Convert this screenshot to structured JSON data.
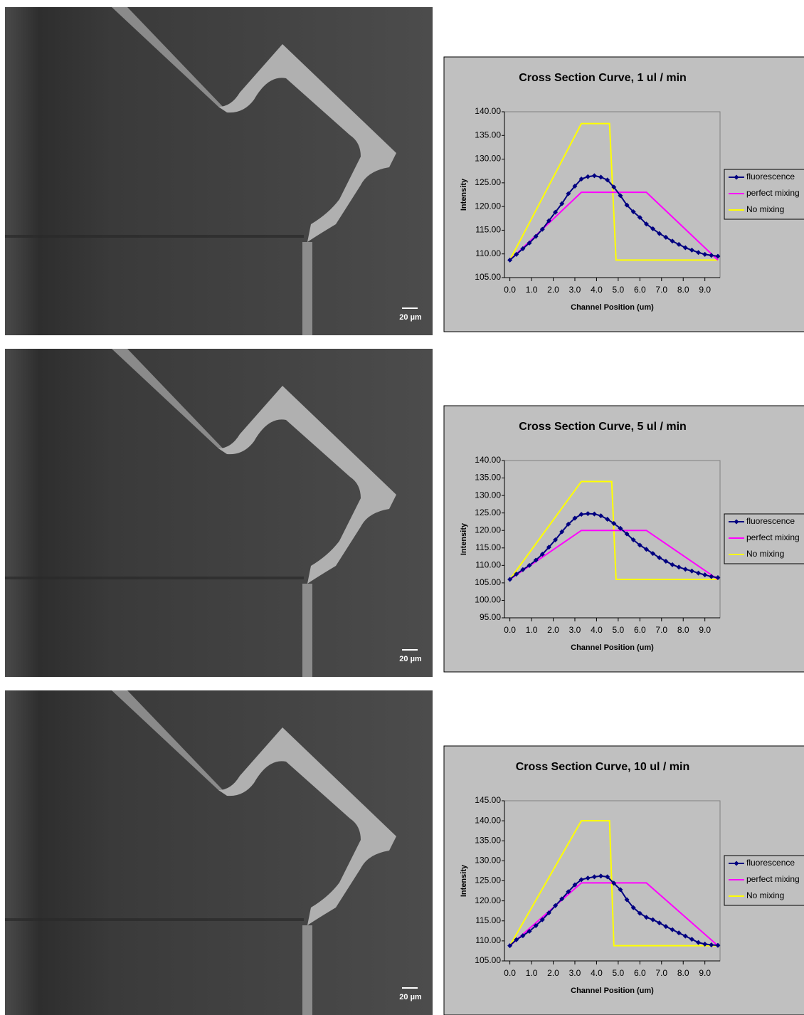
{
  "images": [
    {
      "scale_bar": "20 µm"
    },
    {
      "scale_bar": "20 µm"
    },
    {
      "scale_bar": "20 µm"
    }
  ],
  "chart_data": [
    {
      "type": "line",
      "title": "Cross Section Curve, 1 ul / min",
      "x_label": "Channel Position (um)",
      "y_label": "Intensity",
      "xlim": [
        -0.25,
        9.7
      ],
      "ylim": [
        105,
        140
      ],
      "legend": "right",
      "xticks": [
        {
          "value": 0,
          "label": "0.0"
        },
        {
          "value": 1,
          "label": "1.0"
        },
        {
          "value": 2,
          "label": "2.0"
        },
        {
          "value": 3,
          "label": "3.0"
        },
        {
          "value": 4,
          "label": "4.0"
        },
        {
          "value": 5,
          "label": "5.0"
        },
        {
          "value": 6,
          "label": "6.0"
        },
        {
          "value": 7,
          "label": "7.0"
        },
        {
          "value": 8,
          "label": "8.0"
        },
        {
          "value": 9,
          "label": "9.0"
        }
      ],
      "yticks": [
        {
          "value": 105,
          "label": "105.00"
        },
        {
          "value": 110,
          "label": "110.00"
        },
        {
          "value": 115,
          "label": "115.00"
        },
        {
          "value": 120,
          "label": "120.00"
        },
        {
          "value": 125,
          "label": "125.00"
        },
        {
          "value": 130,
          "label": "130.00"
        },
        {
          "value": 135,
          "label": "135.00"
        },
        {
          "value": 140,
          "label": "140.00"
        }
      ],
      "series": [
        {
          "name": "fluorescence",
          "color": "#000080",
          "marker": "diamond",
          "x": [
            0,
            0.3,
            0.6,
            0.9,
            1.2,
            1.5,
            1.8,
            2.1,
            2.4,
            2.7,
            3.0,
            3.3,
            3.6,
            3.9,
            4.2,
            4.5,
            4.8,
            5.1,
            5.4,
            5.7,
            6.0,
            6.3,
            6.6,
            6.9,
            7.2,
            7.5,
            7.8,
            8.1,
            8.4,
            8.7,
            9.0,
            9.3,
            9.6
          ],
          "values": [
            108.7,
            109.9,
            111.1,
            112.3,
            113.7,
            115.2,
            117.0,
            118.8,
            120.6,
            122.7,
            124.3,
            125.8,
            126.3,
            126.5,
            126.2,
            125.6,
            124.1,
            122.3,
            120.3,
            118.9,
            117.7,
            116.3,
            115.3,
            114.3,
            113.5,
            112.7,
            112.0,
            111.3,
            110.8,
            110.3,
            109.9,
            109.7,
            109.5
          ]
        },
        {
          "name": "perfect mixing",
          "color": "#ff00ff",
          "x": [
            0,
            3.3,
            6.3,
            9.6
          ],
          "values": [
            108.7,
            123,
            123,
            108.7
          ]
        },
        {
          "name": "No mixing",
          "color": "#ffff00",
          "x": [
            0,
            3.3,
            4.6,
            4.9,
            9.6
          ],
          "values": [
            108.7,
            137.5,
            137.5,
            108.7,
            108.7
          ]
        }
      ]
    },
    {
      "type": "line",
      "title": "Cross Section Curve, 5 ul / min",
      "x_label": "Channel Position (um)",
      "y_label": "Intensity",
      "xlim": [
        -0.25,
        9.7
      ],
      "ylim": [
        95,
        140
      ],
      "legend": "right",
      "xticks": [
        {
          "value": 0,
          "label": "0.0"
        },
        {
          "value": 1,
          "label": "1.0"
        },
        {
          "value": 2,
          "label": "2.0"
        },
        {
          "value": 3,
          "label": "3.0"
        },
        {
          "value": 4,
          "label": "4.0"
        },
        {
          "value": 5,
          "label": "5.0"
        },
        {
          "value": 6,
          "label": "6.0"
        },
        {
          "value": 7,
          "label": "7.0"
        },
        {
          "value": 8,
          "label": "8.0"
        },
        {
          "value": 9,
          "label": "9.0"
        }
      ],
      "yticks": [
        {
          "value": 95,
          "label": "95.00"
        },
        {
          "value": 100,
          "label": "100.00"
        },
        {
          "value": 105,
          "label": "105.00"
        },
        {
          "value": 110,
          "label": "110.00"
        },
        {
          "value": 115,
          "label": "115.00"
        },
        {
          "value": 120,
          "label": "120.00"
        },
        {
          "value": 125,
          "label": "125.00"
        },
        {
          "value": 130,
          "label": "130.00"
        },
        {
          "value": 135,
          "label": "135.00"
        },
        {
          "value": 140,
          "label": "140.00"
        }
      ],
      "series": [
        {
          "name": "fluorescence",
          "color": "#000080",
          "marker": "diamond",
          "x": [
            0,
            0.3,
            0.6,
            0.9,
            1.2,
            1.5,
            1.8,
            2.1,
            2.4,
            2.7,
            3.0,
            3.3,
            3.6,
            3.9,
            4.2,
            4.5,
            4.8,
            5.1,
            5.4,
            5.7,
            6.0,
            6.3,
            6.6,
            6.9,
            7.2,
            7.5,
            7.8,
            8.1,
            8.4,
            8.7,
            9.0,
            9.3,
            9.6
          ],
          "values": [
            106.0,
            107.5,
            108.8,
            110.0,
            111.5,
            113.2,
            115.2,
            117.3,
            119.6,
            121.8,
            123.5,
            124.6,
            124.8,
            124.7,
            124.2,
            123.2,
            122.0,
            120.6,
            119.0,
            117.3,
            115.8,
            114.6,
            113.4,
            112.2,
            111.2,
            110.2,
            109.5,
            108.9,
            108.4,
            107.8,
            107.3,
            106.8,
            106.5
          ]
        },
        {
          "name": "perfect mixing",
          "color": "#ff00ff",
          "x": [
            0,
            3.3,
            6.3,
            9.6
          ],
          "values": [
            106,
            120,
            120,
            106
          ]
        },
        {
          "name": "No mixing",
          "color": "#ffff00",
          "x": [
            0,
            3.3,
            4.7,
            4.9,
            9.6
          ],
          "values": [
            106,
            134,
            134,
            106,
            106
          ]
        }
      ]
    },
    {
      "type": "line",
      "title": "Cross Section Curve, 10 ul / min",
      "x_label": "Channel Position (um)",
      "y_label": "Intensity",
      "xlim": [
        -0.25,
        9.7
      ],
      "ylim": [
        105,
        145
      ],
      "legend": "right",
      "xticks": [
        {
          "value": 0,
          "label": "0.0"
        },
        {
          "value": 1,
          "label": "1.0"
        },
        {
          "value": 2,
          "label": "2.0"
        },
        {
          "value": 3,
          "label": "3.0"
        },
        {
          "value": 4,
          "label": "4.0"
        },
        {
          "value": 5,
          "label": "5.0"
        },
        {
          "value": 6,
          "label": "6.0"
        },
        {
          "value": 7,
          "label": "7.0"
        },
        {
          "value": 8,
          "label": "8.0"
        },
        {
          "value": 9,
          "label": "9.0"
        }
      ],
      "yticks": [
        {
          "value": 105,
          "label": "105.00"
        },
        {
          "value": 110,
          "label": "110.00"
        },
        {
          "value": 115,
          "label": "115.00"
        },
        {
          "value": 120,
          "label": "120.00"
        },
        {
          "value": 125,
          "label": "125.00"
        },
        {
          "value": 130,
          "label": "130.00"
        },
        {
          "value": 135,
          "label": "135.00"
        },
        {
          "value": 140,
          "label": "140.00"
        },
        {
          "value": 145,
          "label": "145.00"
        }
      ],
      "series": [
        {
          "name": "fluorescence",
          "color": "#000080",
          "marker": "diamond",
          "x": [
            0,
            0.3,
            0.6,
            0.9,
            1.2,
            1.5,
            1.8,
            2.1,
            2.4,
            2.7,
            3.0,
            3.3,
            3.6,
            3.9,
            4.2,
            4.5,
            4.8,
            5.1,
            5.4,
            5.7,
            6.0,
            6.3,
            6.6,
            6.9,
            7.2,
            7.5,
            7.8,
            8.1,
            8.4,
            8.7,
            9.0,
            9.3,
            9.6
          ],
          "values": [
            108.8,
            110.3,
            111.3,
            112.4,
            113.8,
            115.3,
            117.0,
            118.8,
            120.5,
            122.3,
            124.0,
            125.3,
            125.7,
            126.0,
            126.2,
            126.0,
            124.4,
            122.8,
            120.3,
            118.3,
            116.9,
            115.9,
            115.3,
            114.5,
            113.6,
            112.8,
            112.0,
            111.2,
            110.4,
            109.6,
            109.2,
            109.0,
            108.9
          ]
        },
        {
          "name": "perfect mixing",
          "color": "#ff00ff",
          "x": [
            0,
            3.3,
            6.3,
            9.6
          ],
          "values": [
            108.8,
            124.5,
            124.5,
            108.8
          ]
        },
        {
          "name": "No mixing",
          "color": "#ffff00",
          "x": [
            0,
            3.3,
            4.6,
            4.8,
            9.6
          ],
          "values": [
            108.8,
            140,
            140,
            108.8,
            108.8
          ]
        }
      ]
    }
  ]
}
